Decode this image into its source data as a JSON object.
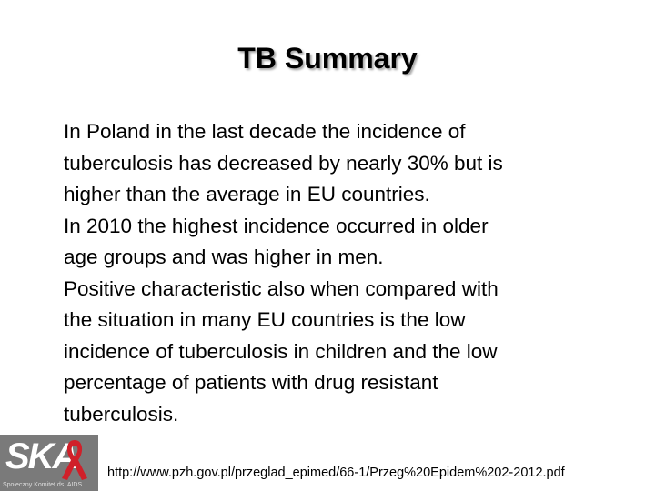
{
  "header": {
    "title": "TB Summary"
  },
  "body": {
    "paragraphs": [
      {
        "lines": [
          "In Poland in the last decade the incidence of",
          "tuberculosis has decreased by nearly 30% but is",
          "higher than the average in EU countries."
        ]
      },
      {
        "lines": [
          "In 2010 the highest incidence occurred in older",
          "age groups and was higher in men."
        ]
      },
      {
        "lines": [
          "Positive characteristic also when compared with",
          "the situation in many EU countries is the low",
          "incidence of tuberculosis in children and the low",
          "percentage of patients with drug resistant",
          "tuberculosis."
        ]
      }
    ]
  },
  "footer": {
    "logo": {
      "name": "SKA",
      "caption": "Społeczny Komitet ds. AIDS"
    },
    "source": "http://www.pzh.gov.pl/przeglad_epimed/66-1/Przeg%20Epidem%202-2012.pdf"
  }
}
